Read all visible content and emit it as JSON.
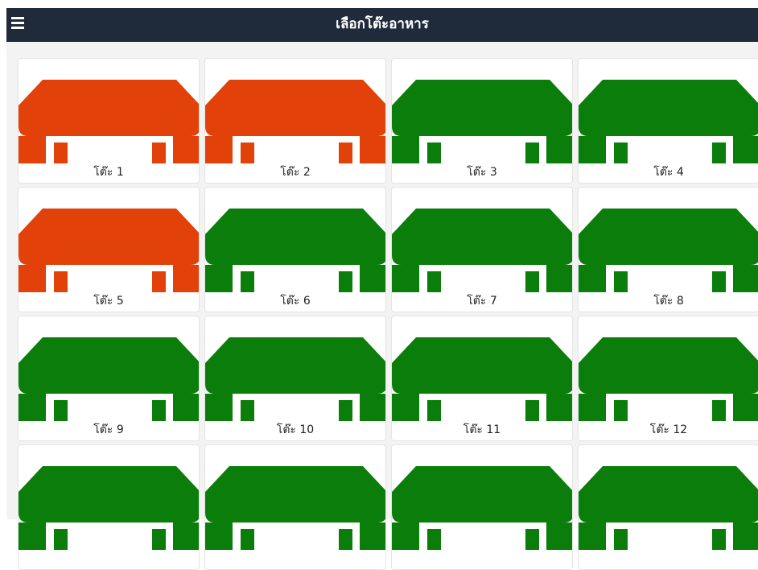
{
  "header": {
    "title": "เลือกโต๊ะอาหาร"
  },
  "tables": [
    {
      "label": "โต๊ะ 1",
      "color": "#e2420a"
    },
    {
      "label": "โต๊ะ 2",
      "color": "#e2420a"
    },
    {
      "label": "โต๊ะ 3",
      "color": "#0a7d0a"
    },
    {
      "label": "โต๊ะ 4",
      "color": "#0a7d0a"
    },
    {
      "label": "โต๊ะ 5",
      "color": "#e2420a"
    },
    {
      "label": "โต๊ะ 6",
      "color": "#0a7d0a"
    },
    {
      "label": "โต๊ะ 7",
      "color": "#0a7d0a"
    },
    {
      "label": "โต๊ะ 8",
      "color": "#0a7d0a"
    },
    {
      "label": "โต๊ะ 9",
      "color": "#0a7d0a"
    },
    {
      "label": "โต๊ะ 10",
      "color": "#0a7d0a"
    },
    {
      "label": "โต๊ะ 11",
      "color": "#0a7d0a"
    },
    {
      "label": "โต๊ะ 12",
      "color": "#0a7d0a"
    },
    {
      "color": "#0a7d0a"
    },
    {
      "color": "#0a7d0a"
    },
    {
      "color": "#0a7d0a"
    },
    {
      "color": "#0a7d0a"
    }
  ]
}
